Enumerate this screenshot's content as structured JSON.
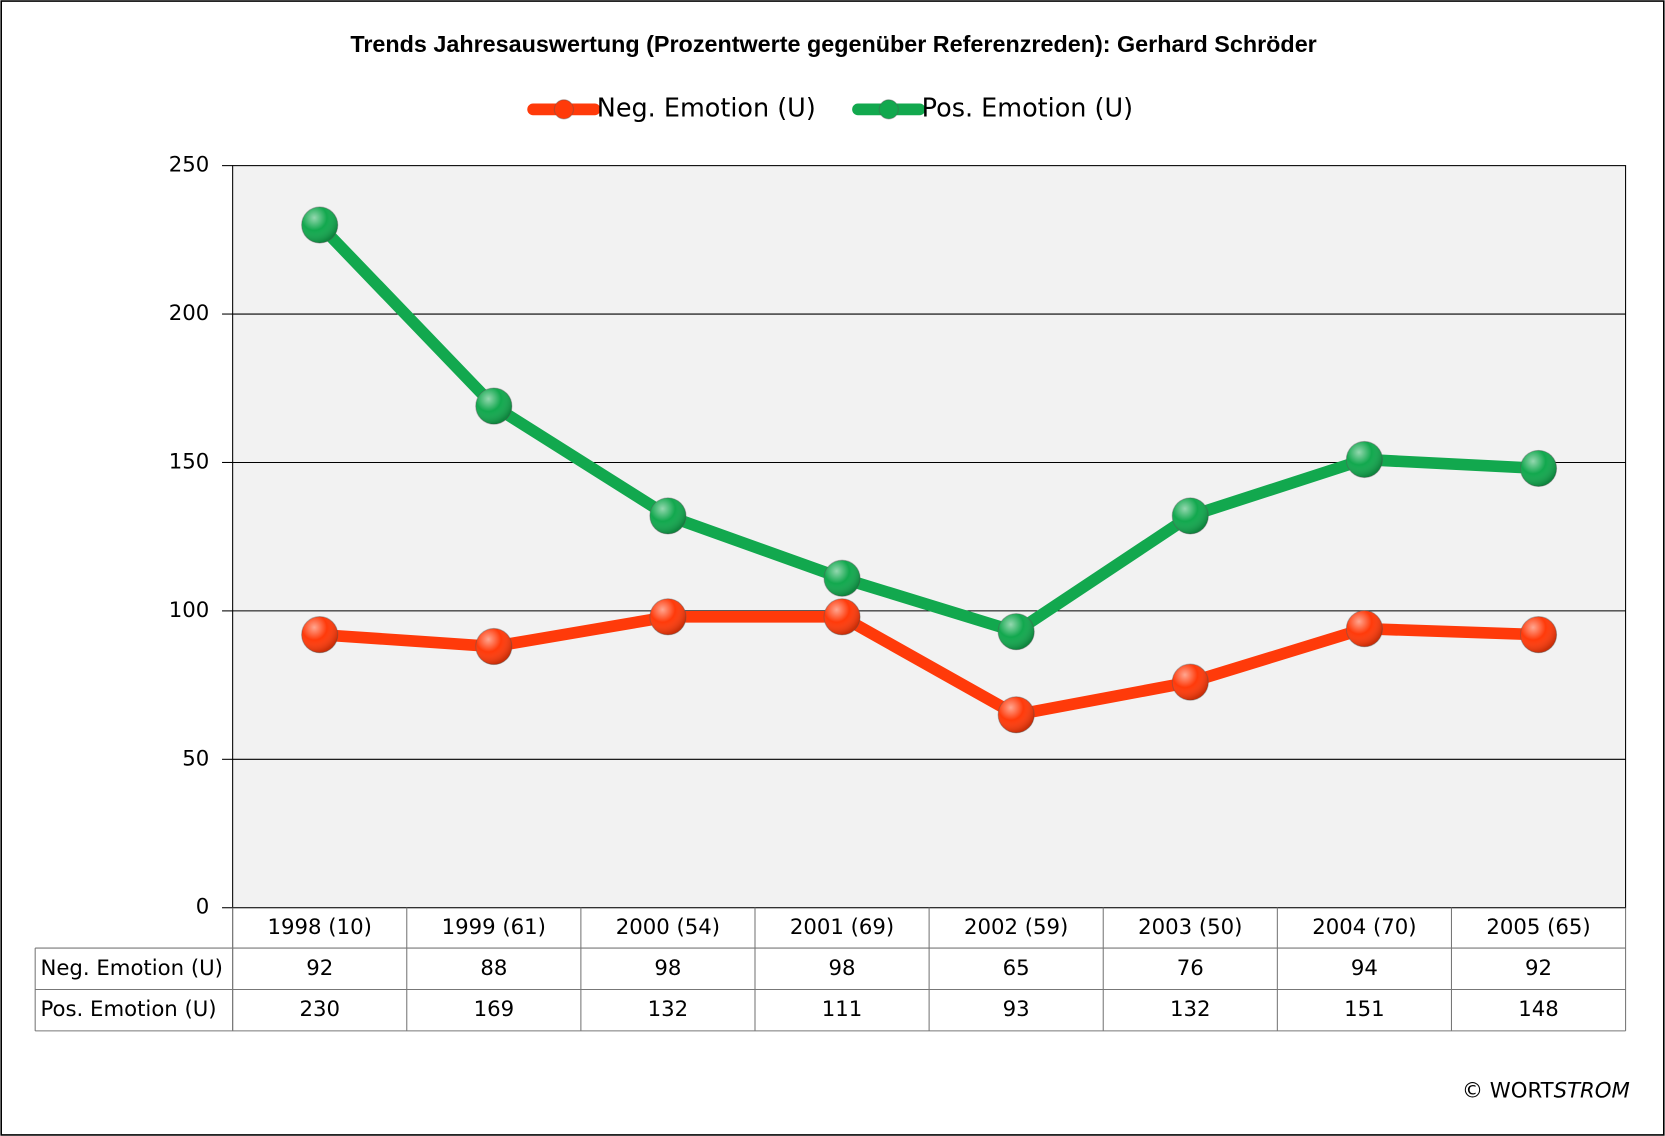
{
  "chart_data": {
    "type": "line",
    "title": "Trends Jahresauswertung (Prozentwerte gegenüber Referenzreden):  Gerhard Schröder",
    "categories": [
      "1998 (10)",
      "1999 (61)",
      "2000 (54)",
      "2001 (69)",
      "2002 (59)",
      "2003 (50)",
      "2004 (70)",
      "2005 (65)"
    ],
    "series": [
      {
        "name": "Neg. Emotion (U)",
        "color": "#ff3a0a",
        "values": [
          92,
          88,
          98,
          98,
          65,
          76,
          94,
          92
        ]
      },
      {
        "name": "Pos. Emotion (U)",
        "color": "#12a84e",
        "values": [
          230,
          169,
          132,
          111,
          93,
          132,
          151,
          148
        ]
      }
    ],
    "ylim": [
      0,
      250
    ],
    "yticks": [
      0,
      50,
      100,
      150,
      200,
      250
    ],
    "grid": true,
    "legend": "top",
    "footer": [
      "© WORT",
      "STROM"
    ]
  }
}
